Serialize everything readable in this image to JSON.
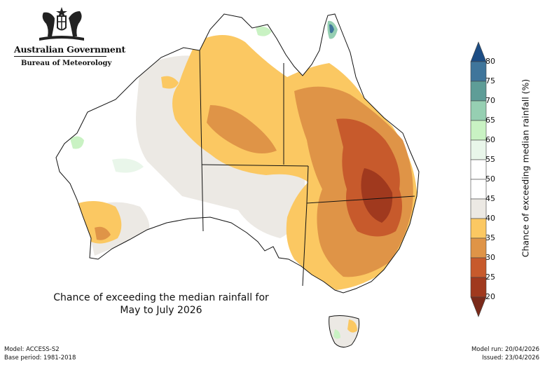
{
  "header": {
    "org": "Australian Government",
    "agency": "Bureau of Meteorology",
    "crest_icon": "coat-of-arms-icon"
  },
  "map": {
    "title_line1": "Chance of exceeding the median rainfall for",
    "title_line2": "May to July 2026",
    "colors": {
      "c20_25": "#a0391e",
      "c25_30": "#c75a2c",
      "c30_35": "#df9447",
      "c35_40": "#fbc862",
      "c40_45": "#ece9e4",
      "c45_55": "#ffffff",
      "c55_60": "#e9f6ea",
      "c60_65": "#c9f2c3",
      "c65_70": "#96cfb2",
      "c70_75": "#5e9d97",
      "c75_80": "#3f759b",
      "c80plus": "#1c4d84"
    }
  },
  "legend": {
    "title": "Chance of exceeding median rainfall (%)",
    "ticks": [
      "80",
      "75",
      "70",
      "65",
      "60",
      "55",
      "50",
      "45",
      "40",
      "35",
      "30",
      "25",
      "20"
    ]
  },
  "footer": {
    "model": "Model: ACCESS-S2",
    "base_period": "Base period: 1981-2018",
    "model_run": "Model run: 20/04/2026",
    "issued": "Issued: 23/04/2026"
  }
}
